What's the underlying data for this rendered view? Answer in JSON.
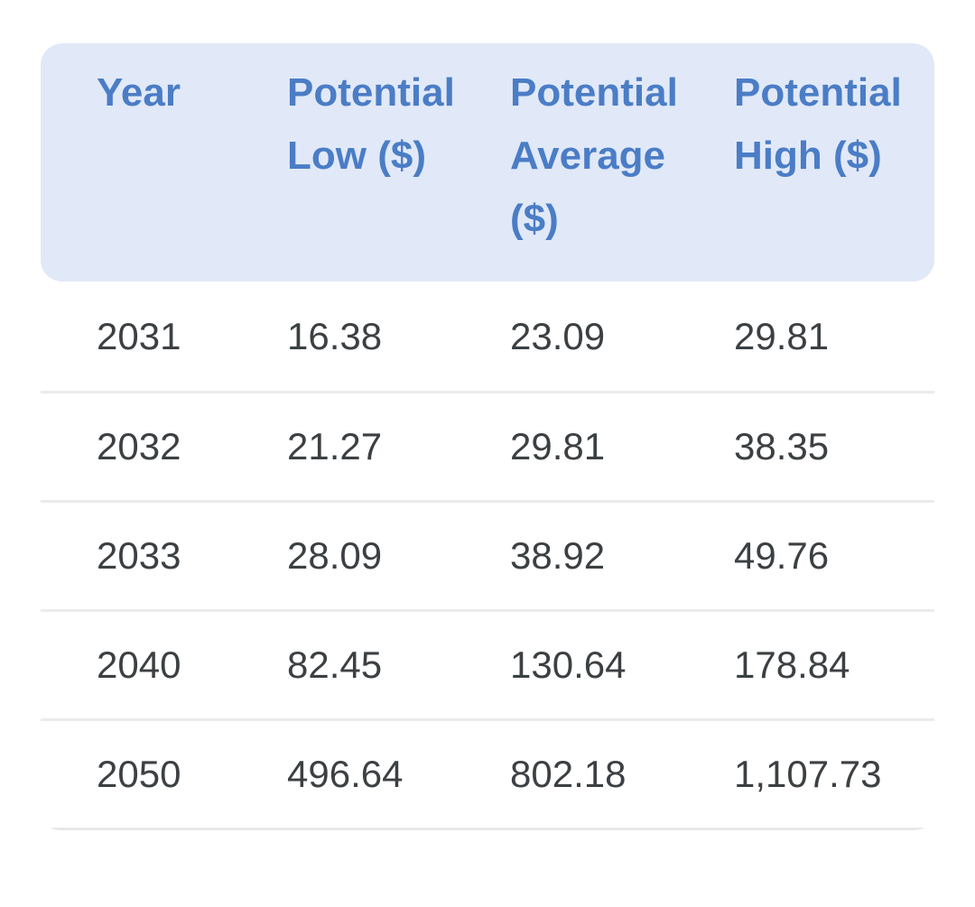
{
  "table": {
    "columns": [
      {
        "label": "Year"
      },
      {
        "label": "Potential Low ($)"
      },
      {
        "label": "Potential Average ($)"
      },
      {
        "label": "Potential High ($)"
      }
    ],
    "rows": [
      {
        "year": "2031",
        "low": "16.38",
        "avg": "23.09",
        "high": "29.81"
      },
      {
        "year": "2032",
        "low": "21.27",
        "avg": "29.81",
        "high": "38.35"
      },
      {
        "year": "2033",
        "low": "28.09",
        "avg": "38.92",
        "high": "49.76"
      },
      {
        "year": "2040",
        "low": "82.45",
        "avg": "130.64",
        "high": "178.84"
      },
      {
        "year": "2050",
        "low": "496.64",
        "avg": "802.18",
        "high": "1,107.73"
      }
    ]
  },
  "colors": {
    "header_background": "#e1e9f8",
    "header_text": "#4b7dc6",
    "body_text": "#3c4043",
    "row_divider": "#ebebeb",
    "bottom_border": "#e8e8e8"
  }
}
